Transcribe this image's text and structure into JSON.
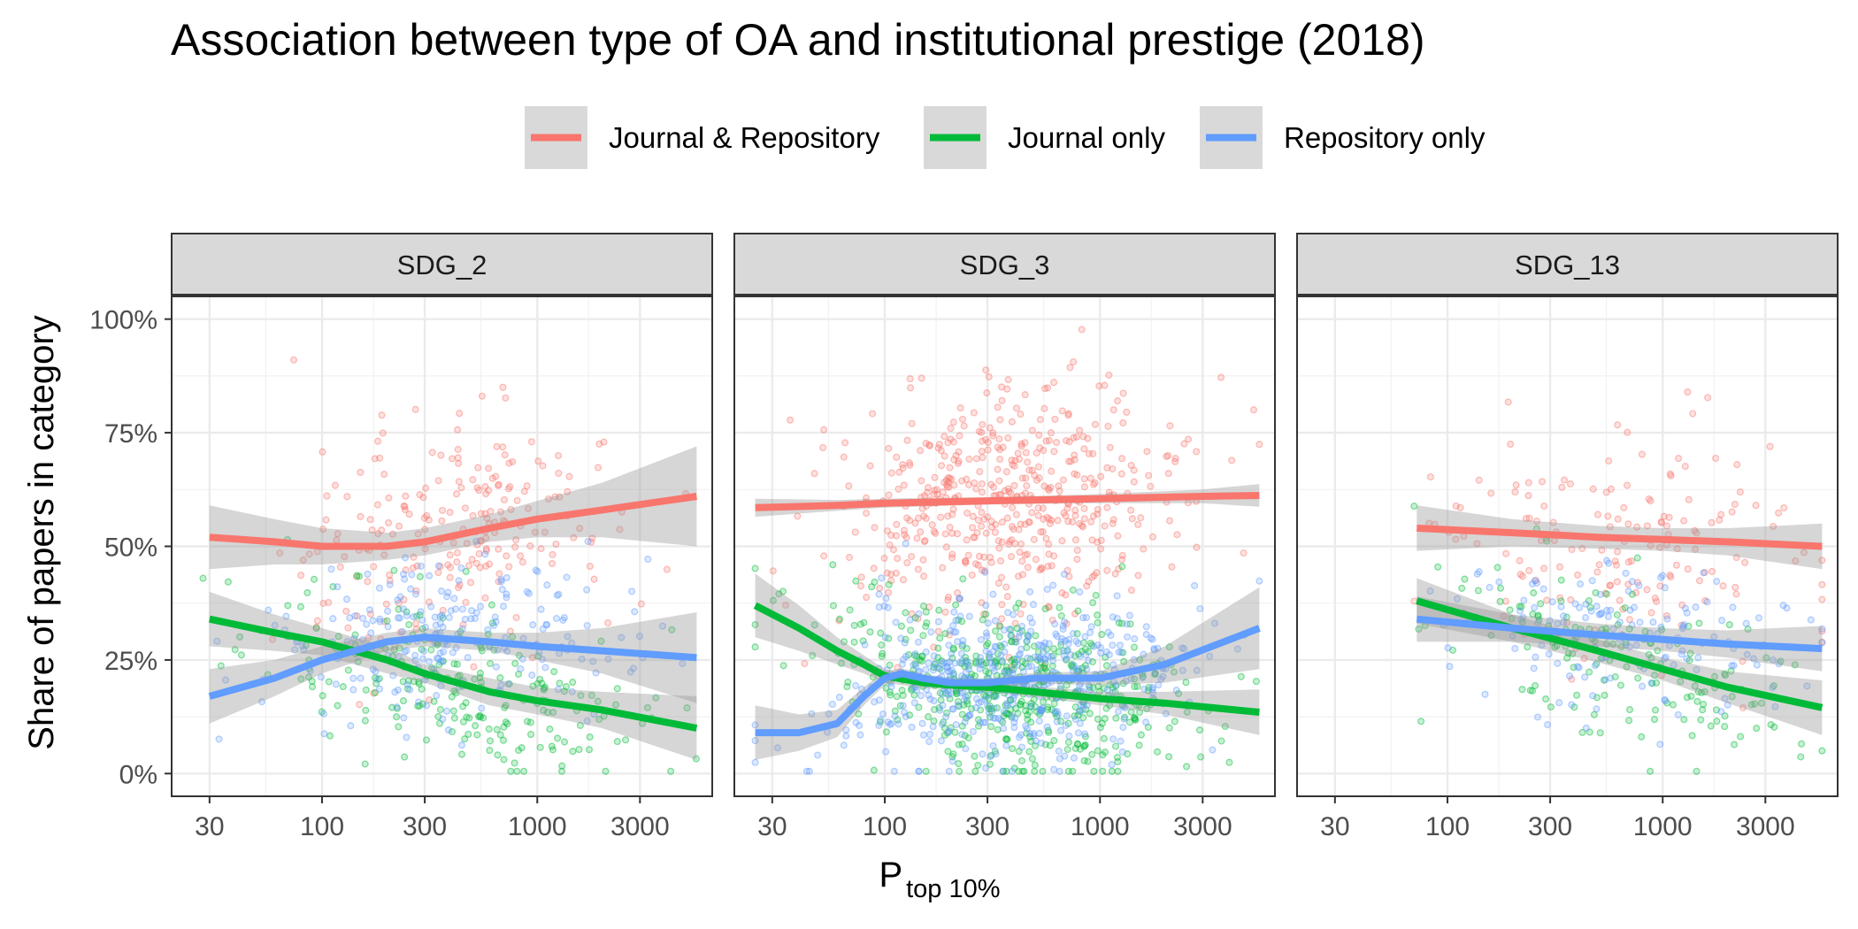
{
  "chart_data": {
    "type": "scatter",
    "title": "Association between type of OA and institutional prestige (2018)",
    "xlabel_main": "P",
    "xlabel_sub": "top 10%",
    "ylabel": "Share of papers in category",
    "x_scale": "log10",
    "xlim": [
      20,
      6500
    ],
    "ylim": [
      -0.05,
      1.05
    ],
    "x_ticks": [
      30,
      100,
      300,
      1000,
      3000
    ],
    "x_tick_labels": [
      "30",
      "100",
      "300",
      "1000",
      "3000"
    ],
    "y_ticks": [
      0,
      0.25,
      0.5,
      0.75,
      1.0
    ],
    "y_tick_labels": [
      "0%",
      "25%",
      "50%",
      "75%",
      "100%"
    ],
    "grid": true,
    "legend_position": "top",
    "series": [
      {
        "name": "Journal & Repository",
        "color": "#F8766D"
      },
      {
        "name": "Journal only",
        "color": "#00BA38"
      },
      {
        "name": "Repository only",
        "color": "#619CFF"
      }
    ],
    "panels": [
      {
        "label": "SDG_2",
        "point_range": [
          28,
          5500
        ],
        "point_density": 1.0,
        "trends": [
          {
            "series": "Journal & Repository",
            "x": [
              30,
              60,
              100,
              200,
              300,
              600,
              1000,
              2000,
              5500
            ],
            "y": [
              0.52,
              0.51,
              0.5,
              0.5,
              0.51,
              0.54,
              0.56,
              0.58,
              0.61
            ],
            "se": [
              0.07,
              0.05,
              0.04,
              0.03,
              0.03,
              0.03,
              0.04,
              0.06,
              0.11
            ]
          },
          {
            "series": "Journal only",
            "x": [
              30,
              60,
              100,
              200,
              300,
              600,
              1000,
              2000,
              5500
            ],
            "y": [
              0.34,
              0.31,
              0.29,
              0.25,
              0.22,
              0.18,
              0.16,
              0.14,
              0.1
            ],
            "se": [
              0.06,
              0.04,
              0.03,
              0.03,
              0.02,
              0.03,
              0.03,
              0.04,
              0.07
            ]
          },
          {
            "series": "Repository only",
            "x": [
              30,
              60,
              100,
              200,
              300,
              600,
              1000,
              2000,
              5500
            ],
            "y": [
              0.17,
              0.21,
              0.25,
              0.29,
              0.3,
              0.29,
              0.28,
              0.27,
              0.255
            ],
            "se": [
              0.06,
              0.04,
              0.03,
              0.02,
              0.02,
              0.02,
              0.03,
              0.05,
              0.1
            ]
          }
        ]
      },
      {
        "label": "SDG_3",
        "point_range": [
          25,
          5500
        ],
        "point_density": 2.2,
        "trends": [
          {
            "series": "Journal & Repository",
            "x": [
              25,
              60,
              100,
              300,
              1000,
              3000,
              5500
            ],
            "y": [
              0.585,
              0.59,
              0.595,
              0.6,
              0.605,
              0.61,
              0.612
            ],
            "se": [
              0.02,
              0.012,
              0.01,
              0.008,
              0.01,
              0.015,
              0.025
            ]
          },
          {
            "series": "Journal only",
            "x": [
              25,
              40,
              60,
              80,
              100,
              150,
              200,
              300,
              500,
              1000,
              2000,
              5500
            ],
            "y": [
              0.37,
              0.32,
              0.27,
              0.24,
              0.215,
              0.2,
              0.195,
              0.19,
              0.18,
              0.165,
              0.155,
              0.135
            ],
            "se": [
              0.07,
              0.05,
              0.03,
              0.02,
              0.015,
              0.012,
              0.01,
              0.01,
              0.012,
              0.015,
              0.025,
              0.05
            ]
          },
          {
            "series": "Repository only",
            "x": [
              25,
              40,
              60,
              80,
              100,
              120,
              150,
              200,
              300,
              500,
              1000,
              2000,
              5500
            ],
            "y": [
              0.09,
              0.09,
              0.11,
              0.17,
              0.21,
              0.22,
              0.21,
              0.2,
              0.2,
              0.21,
              0.21,
              0.24,
              0.32
            ],
            "se": [
              0.06,
              0.04,
              0.03,
              0.02,
              0.015,
              0.012,
              0.01,
              0.01,
              0.01,
              0.012,
              0.015,
              0.04,
              0.09
            ]
          }
        ]
      },
      {
        "label": "SDG_13",
        "point_range": [
          70,
          5500
        ],
        "point_density": 0.7,
        "trends": [
          {
            "series": "Journal & Repository",
            "x": [
              72,
              200,
              500,
              1000,
              2000,
              5500
            ],
            "y": [
              0.54,
              0.53,
              0.52,
              0.515,
              0.51,
              0.5
            ],
            "se": [
              0.05,
              0.03,
              0.025,
              0.025,
              0.03,
              0.05
            ]
          },
          {
            "series": "Journal only",
            "x": [
              72,
              200,
              500,
              1000,
              2000,
              5500
            ],
            "y": [
              0.38,
              0.32,
              0.27,
              0.23,
              0.19,
              0.145
            ],
            "se": [
              0.05,
              0.03,
              0.025,
              0.025,
              0.035,
              0.06
            ]
          },
          {
            "series": "Repository only",
            "x": [
              72,
              200,
              500,
              1000,
              2000,
              5500
            ],
            "y": [
              0.34,
              0.32,
              0.305,
              0.295,
              0.285,
              0.275
            ],
            "se": [
              0.05,
              0.03,
              0.025,
              0.025,
              0.03,
              0.05
            ]
          }
        ]
      }
    ]
  }
}
